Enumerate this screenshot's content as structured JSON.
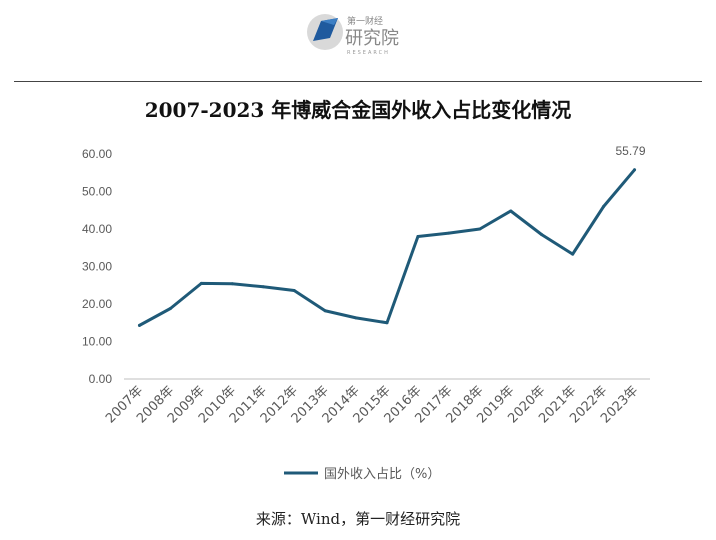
{
  "logo": {
    "small_text": "第一财经",
    "large_text": "研究院",
    "sub_text": "RESEARCH",
    "icon": "folded-paper-logo-icon"
  },
  "colors": {
    "series": "#1f5a78",
    "axis": "#bfbfbf",
    "text": "#595959"
  },
  "chart_data": {
    "type": "line",
    "title": "2007-2023 年博威合金国外收入占比变化情况",
    "xlabel": "",
    "ylabel": "",
    "categories": [
      "2007年",
      "2008年",
      "2009年",
      "2010年",
      "2011年",
      "2012年",
      "2013年",
      "2014年",
      "2015年",
      "2016年",
      "2017年",
      "2018年",
      "2019年",
      "2020年",
      "2021年",
      "2022年",
      "2023年"
    ],
    "series": [
      {
        "name": "国外收入占比（%）",
        "values": [
          14.3,
          18.8,
          25.5,
          25.4,
          24.6,
          23.6,
          18.2,
          16.3,
          15.0,
          38.0,
          38.9,
          40.0,
          44.8,
          38.5,
          33.3,
          46.0,
          55.79
        ]
      }
    ],
    "yticks": [
      "0.00",
      "10.00",
      "20.00",
      "30.00",
      "40.00",
      "50.00",
      "60.00"
    ],
    "ylim": [
      0,
      60
    ],
    "data_labels": [
      {
        "index": 16,
        "text": "55.79"
      }
    ],
    "grid": false,
    "legend": "bottom"
  },
  "source": "来源：Wind，第一财经研究院"
}
